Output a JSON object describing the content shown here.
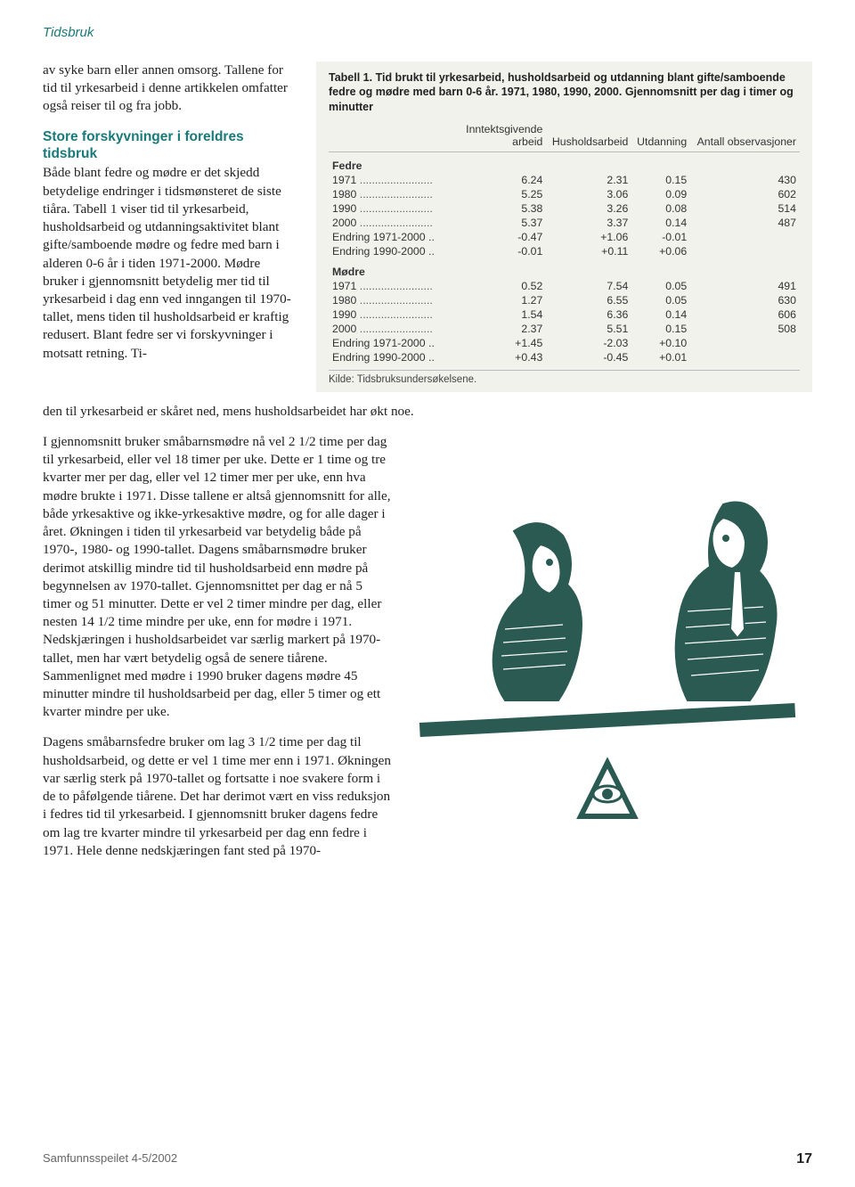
{
  "running_head": "Tidsbruk",
  "left": {
    "para1": "av syke barn eller annen omsorg. Tallene for tid til yrkesarbeid i denne artikkelen omfatter også reiser til og fra jobb.",
    "subhead": "Store forskyvninger i foreldres tidsbruk",
    "para2": "Både blant fedre og mødre er det skjedd betydelige endringer i tidsmønsteret de siste tiåra. Tabell 1 viser tid til yrkesarbeid, husholdsarbeid og utdanningsaktivitet blant gifte/samboende mødre og fedre med barn i alderen 0-6 år i tiden 1971-2000. Mødre bruker i gjennomsnitt betydelig mer tid til yrkesarbeid i dag enn ved inngangen til 1970-tallet, mens tiden til husholdsarbeid er kraftig redusert. Blant fedre ser vi forskyvninger i motsatt retning. Ti-"
  },
  "table": {
    "title": "Tabell 1. Tid brukt til yrkesarbeid, husholdsarbeid og utdanning blant gifte/samboende fedre og mødre med barn 0-6 år. 1971, 1980, 1990, 2000. Gjennomsnitt per dag i timer og minutter",
    "columns": [
      "",
      "Inntektsgivende arbeid",
      "Husholdsarbeid",
      "Utdanning",
      "Antall observasjoner"
    ],
    "sections": [
      {
        "label": "Fedre",
        "rows": [
          {
            "label": "1971",
            "dots": true,
            "v": [
              "6.24",
              "2.31",
              "0.15",
              "430"
            ]
          },
          {
            "label": "1980",
            "dots": true,
            "v": [
              "5.25",
              "3.06",
              "0.09",
              "602"
            ]
          },
          {
            "label": "1990",
            "dots": true,
            "v": [
              "5.38",
              "3.26",
              "0.08",
              "514"
            ]
          },
          {
            "label": "2000",
            "dots": true,
            "v": [
              "5.37",
              "3.37",
              "0.14",
              "487"
            ]
          },
          {
            "label": "Endring 1971-2000 ..",
            "dots": false,
            "v": [
              "-0.47",
              "+1.06",
              "-0.01",
              ""
            ]
          },
          {
            "label": "Endring 1990-2000 ..",
            "dots": false,
            "v": [
              "-0.01",
              "+0.11",
              "+0.06",
              ""
            ]
          }
        ]
      },
      {
        "label": "Mødre",
        "rows": [
          {
            "label": "1971",
            "dots": true,
            "v": [
              "0.52",
              "7.54",
              "0.05",
              "491"
            ]
          },
          {
            "label": "1980",
            "dots": true,
            "v": [
              "1.27",
              "6.55",
              "0.05",
              "630"
            ]
          },
          {
            "label": "1990",
            "dots": true,
            "v": [
              "1.54",
              "6.36",
              "0.14",
              "606"
            ]
          },
          {
            "label": "2000",
            "dots": true,
            "v": [
              "2.37",
              "5.51",
              "0.15",
              "508"
            ]
          },
          {
            "label": "Endring 1971-2000 ..",
            "dots": false,
            "v": [
              "+1.45",
              "-2.03",
              "+0.10",
              ""
            ]
          },
          {
            "label": "Endring 1990-2000 ..",
            "dots": false,
            "v": [
              "+0.43",
              "-0.45",
              "+0.01",
              ""
            ]
          }
        ]
      }
    ],
    "source": "Kilde: Tidsbruksundersøkelsene."
  },
  "continuation": "den til yrkesarbeid er skåret ned, mens husholdsarbeidet har økt noe.",
  "flow": {
    "p1": "I gjennomsnitt bruker småbarnsmødre nå vel 2 1/2 time per dag til yrkesarbeid, eller vel 18 timer per uke. Dette er 1 time og tre kvarter mer per dag, eller vel 12 timer mer per uke, enn hva mødre brukte i 1971. Disse tallene er altså gjennomsnitt for alle, både yrkesaktive og ikke-yrkesaktive mødre, og for alle dager i året. Økningen i tiden til yrkesarbeid var betydelig både på 1970-, 1980- og 1990-tallet. Dagens småbarnsmødre bruker derimot atskillig mindre tid til husholdsarbeid enn mødre på begynnelsen av 1970-tallet. Gjennomsnittet per dag er nå 5 timer og 51 minutter. Dette er vel 2 timer mindre per dag, eller nesten 14 1/2 time mindre per uke, enn for mødre i 1971. Nedskjæringen i husholdsarbeidet var særlig markert på 1970-tallet, men har vært betydelig også de senere tiårene. Sammenlignet med mødre i 1990 bruker dagens mødre 45 minutter mindre til husholdsarbeid per dag, eller 5 timer og ett kvarter mindre per uke.",
    "p2": "Dagens småbarnsfedre bruker om lag 3 1/2 time per dag til husholdsarbeid, og dette er vel 1 time mer enn i 1971. Økningen var særlig sterk på 1970-tallet og fortsatte i noe svakere form i de to påfølgende tiårene. Det har derimot vært en viss reduksjon i fedres tid til yrkesarbeid. I gjennomsnitt bruker dagens fedre om lag tre kvarter mindre til yrkesarbeid per dag enn fedre i 1971. Hele denne nedskjæringen fant sted på 1970-"
  },
  "footer": {
    "issue": "Samfunnsspeilet 4-5/2002",
    "page": "17"
  },
  "colors": {
    "teal": "#1a7a7a",
    "illus": "#2a5a52",
    "table_bg": "#f2f2ed"
  }
}
